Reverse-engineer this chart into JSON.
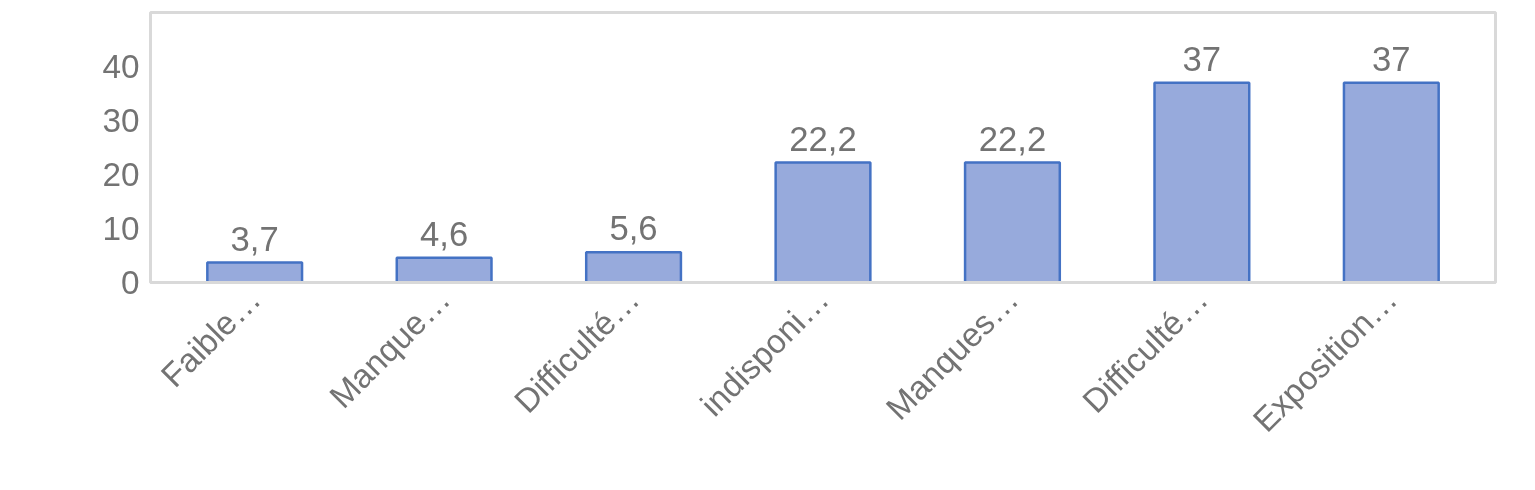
{
  "chart_data": {
    "type": "bar",
    "categories": [
      "Faible…",
      "Manque…",
      "Difficulté…",
      "indisponi…",
      "Manques…",
      "Difficulté…",
      "Exposition…"
    ],
    "values": [
      3.7,
      4.6,
      5.6,
      22.2,
      22.2,
      37,
      37
    ],
    "value_labels": [
      "3,7",
      "4,6",
      "5,6",
      "22,2",
      "22,2",
      "37",
      "37"
    ],
    "color": "#97aadc",
    "ylim": [
      0,
      50
    ],
    "yticks": [
      0,
      10,
      20,
      30,
      40
    ],
    "grid": false
  }
}
